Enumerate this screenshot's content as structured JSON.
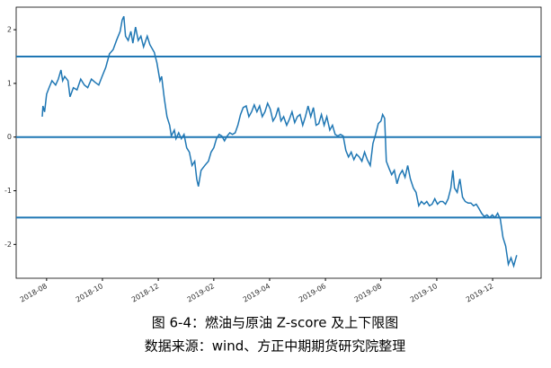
{
  "chart_data": {
    "type": "line",
    "caption": [
      "图 6-4：燃油与原油 Z-score 及上下限图",
      "数据来源：wind、方正中期期货研究院整理"
    ],
    "x": [
      2018.57,
      2018.572,
      2018.577,
      2018.583,
      2018.591,
      2018.599,
      2018.61,
      2018.618,
      2018.626,
      2018.631,
      2018.637,
      2018.647,
      2018.653,
      2018.663,
      2018.674,
      2018.685,
      2018.696,
      2018.706,
      2018.717,
      2018.728,
      2018.739,
      2018.749,
      2018.76,
      2018.771,
      2018.782,
      2018.792,
      2018.803,
      2018.809,
      2018.814,
      2018.819,
      2018.827,
      2018.835,
      2018.841,
      2018.849,
      2018.857,
      2018.865,
      2018.873,
      2018.884,
      2018.892,
      2018.905,
      2018.913,
      2018.922,
      2018.927,
      2018.935,
      2018.943,
      2018.951,
      2018.956,
      2018.965,
      2018.97,
      2018.978,
      2018.986,
      2018.994,
      2019.002,
      2019.01,
      2019.018,
      2019.026,
      2019.032,
      2019.037,
      2019.045,
      2019.056,
      2019.067,
      2019.075,
      2019.083,
      2019.091,
      2019.099,
      2019.107,
      2019.115,
      2019.123,
      2019.131,
      2019.139,
      2019.147,
      2019.155,
      2019.163,
      2019.171,
      2019.18,
      2019.188,
      2019.196,
      2019.204,
      2019.212,
      2019.22,
      2019.228,
      2019.236,
      2019.244,
      2019.252,
      2019.26,
      2019.268,
      2019.276,
      2019.284,
      2019.292,
      2019.301,
      2019.309,
      2019.317,
      2019.325,
      2019.333,
      2019.341,
      2019.349,
      2019.357,
      2019.365,
      2019.373,
      2019.381,
      2019.389,
      2019.397,
      2019.405,
      2019.413,
      2019.421,
      2019.43,
      2019.438,
      2019.446,
      2019.454,
      2019.462,
      2019.47,
      2019.478,
      2019.486,
      2019.494,
      2019.502,
      2019.51,
      2019.518,
      2019.526,
      2019.534,
      2019.542,
      2019.551,
      2019.559,
      2019.567,
      2019.575,
      2019.583,
      2019.588,
      2019.594,
      2019.599,
      2019.607,
      2019.615,
      2019.623,
      2019.631,
      2019.639,
      2019.647,
      2019.655,
      2019.663,
      2019.671,
      2019.68,
      2019.688,
      2019.696,
      2019.704,
      2019.712,
      2019.72,
      2019.728,
      2019.736,
      2019.744,
      2019.752,
      2019.76,
      2019.768,
      2019.776,
      2019.784,
      2019.792,
      2019.798,
      2019.803,
      2019.811,
      2019.819,
      2019.827,
      2019.835,
      2019.844,
      2019.852,
      2019.86,
      2019.868,
      2019.876,
      2019.884,
      2019.892,
      2019.9,
      2019.908,
      2019.916,
      2019.924,
      2019.932,
      2019.94,
      2019.948,
      2019.956,
      2019.964,
      2019.972,
      2019.98,
      2019.989
    ],
    "series": [
      {
        "color": "#1f77b4",
        "values": [
          0.38,
          0.58,
          0.47,
          0.8,
          0.93,
          1.05,
          0.97,
          1.08,
          1.25,
          1.05,
          1.13,
          1.05,
          0.75,
          0.92,
          0.88,
          1.08,
          0.97,
          0.92,
          1.08,
          1.02,
          0.97,
          1.13,
          1.3,
          1.55,
          1.63,
          1.8,
          1.97,
          2.18,
          2.25,
          1.88,
          1.8,
          1.97,
          1.75,
          2.05,
          1.8,
          1.88,
          1.68,
          1.88,
          1.72,
          1.58,
          1.38,
          1.05,
          1.13,
          0.72,
          0.38,
          0.22,
          0.02,
          0.13,
          -0.03,
          0.08,
          -0.03,
          0.05,
          -0.2,
          -0.28,
          -0.53,
          -0.45,
          -0.78,
          -0.92,
          -0.62,
          -0.53,
          -0.45,
          -0.28,
          -0.2,
          -0.03,
          0.05,
          0.02,
          -0.07,
          0.02,
          0.08,
          0.05,
          0.08,
          0.22,
          0.42,
          0.55,
          0.58,
          0.38,
          0.47,
          0.6,
          0.47,
          0.58,
          0.38,
          0.47,
          0.63,
          0.52,
          0.3,
          0.38,
          0.55,
          0.3,
          0.38,
          0.22,
          0.33,
          0.47,
          0.27,
          0.38,
          0.42,
          0.22,
          0.38,
          0.58,
          0.38,
          0.55,
          0.22,
          0.25,
          0.42,
          0.22,
          0.38,
          0.13,
          0.22,
          0.05,
          0.02,
          0.05,
          0.02,
          -0.25,
          -0.37,
          -0.28,
          -0.42,
          -0.32,
          -0.37,
          -0.45,
          -0.28,
          -0.42,
          -0.53,
          -0.12,
          0.05,
          0.25,
          0.3,
          0.42,
          0.35,
          -0.45,
          -0.58,
          -0.7,
          -0.62,
          -0.87,
          -0.7,
          -0.62,
          -0.75,
          -0.53,
          -0.78,
          -0.95,
          -1.03,
          -1.28,
          -1.2,
          -1.25,
          -1.2,
          -1.28,
          -1.25,
          -1.15,
          -1.25,
          -1.2,
          -1.2,
          -1.25,
          -1.15,
          -0.95,
          -0.62,
          -0.95,
          -1.03,
          -0.78,
          -1.12,
          -1.2,
          -1.23,
          -1.23,
          -1.28,
          -1.25,
          -1.33,
          -1.42,
          -1.48,
          -1.45,
          -1.5,
          -1.45,
          -1.5,
          -1.42,
          -1.53,
          -1.87,
          -2.03,
          -2.37,
          -2.25,
          -2.4,
          -2.2
        ]
      }
    ],
    "hlines": [
      1.5,
      0,
      -1.5
    ],
    "xlim": [
      2018.492,
      2020.062
    ],
    "ylim": [
      -2.63,
      2.42
    ],
    "xticks": [
      {
        "value": 2018.583,
        "label": "2018-08"
      },
      {
        "value": 2018.75,
        "label": "2018-10"
      },
      {
        "value": 2018.917,
        "label": "2018-12"
      },
      {
        "value": 2019.083,
        "label": "2019-02"
      },
      {
        "value": 2019.25,
        "label": "2019-04"
      },
      {
        "value": 2019.417,
        "label": "2019-06"
      },
      {
        "value": 2019.583,
        "label": "2019-08"
      },
      {
        "value": 2019.75,
        "label": "2019-10"
      },
      {
        "value": 2019.917,
        "label": "2019-12"
      }
    ],
    "yticks": [
      2,
      1,
      0,
      -1,
      -2
    ]
  }
}
